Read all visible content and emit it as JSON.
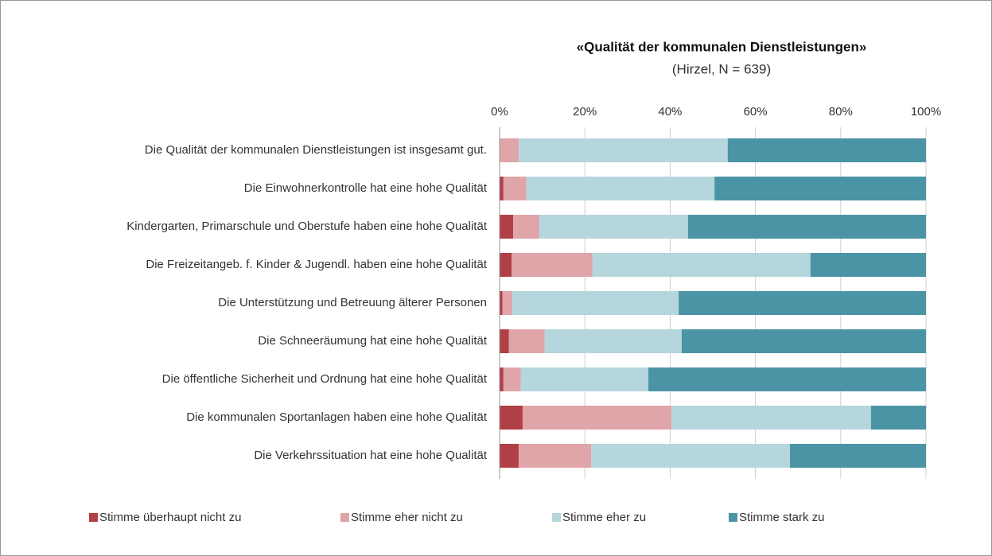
{
  "chart_data": {
    "type": "stacked-barh",
    "title": "«Qualität der kommunalen Dienstleistungen»",
    "subtitle": "(Hirzel, N = 639)",
    "categories": [
      "Die Qualität der kommunalen Dienstleistungen ist insgesamt gut.",
      "Die Einwohnerkontrolle hat eine hohe Qualität",
      "Kindergarten, Primarschule und Oberstufe haben eine hohe Qualität",
      "Die Freizeitangeb. f. Kinder & Jugendl. haben eine hohe Qualität",
      "Die Unterstützung und Betreuung älterer Personen",
      "Die Schneeräumung hat eine hohe Qualität",
      "Die öffentliche Sicherheit und Ordnung hat eine hohe Qualität",
      "Die kommunalen Sportanlagen haben eine hohe Qualität",
      "Die Verkehrssituation hat eine hohe Qualität"
    ],
    "series": [
      {
        "name": "Stimme überhaupt nicht zu",
        "color": "#b04046",
        "values": [
          0,
          0.9,
          3.2,
          2.8,
          0.7,
          2.2,
          0.9,
          5.4,
          4.5
        ]
      },
      {
        "name": "Stimme eher nicht zu",
        "color": "#e0a5a8",
        "values": [
          4.5,
          5.4,
          6.1,
          19.0,
          2.3,
          8.4,
          4.1,
          34.9,
          17.0
        ]
      },
      {
        "name": "Stimme eher zu",
        "color": "#b5d6dc",
        "values": [
          49.0,
          44.1,
          34.9,
          51.1,
          39.0,
          32.1,
          29.9,
          46.8,
          46.6
        ]
      },
      {
        "name": "Stimme stark zu",
        "color": "#4a94a5",
        "values": [
          46.5,
          49.6,
          55.8,
          27.1,
          58.0,
          57.3,
          65.1,
          12.9,
          31.9
        ]
      }
    ],
    "xlim": [
      0,
      100
    ],
    "xticks": [
      {
        "value": 0,
        "label": "0%"
      },
      {
        "value": 20,
        "label": "20%"
      },
      {
        "value": 40,
        "label": "40%"
      },
      {
        "value": 60,
        "label": "60%"
      },
      {
        "value": 80,
        "label": "80%"
      },
      {
        "value": 100,
        "label": "100%"
      }
    ],
    "grid": true,
    "legend": "bottom"
  }
}
